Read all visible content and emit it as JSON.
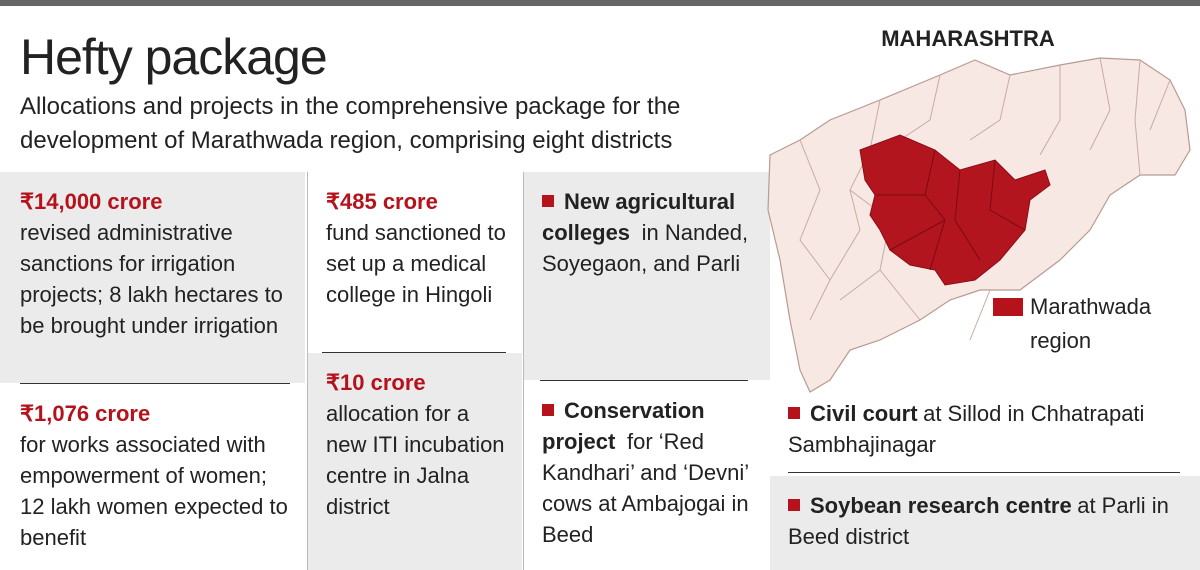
{
  "header": {
    "title": "Hefty package",
    "subtitle": "Allocations and projects in the comprehensive package for the development of Marathwada region, comprising eight districts"
  },
  "map": {
    "title": "MAHARASHTRA",
    "legend": "Marathwada region"
  },
  "items": [
    {
      "amount": "₹14,000 crore",
      "text": "revised administrative sanctions for irrigation projects; 8 lakh hectares to be brought under irrigation"
    },
    {
      "amount": "₹1,076 crore",
      "text": "for works associated with empowerment of women; 12 lakh women expected to benefit"
    },
    {
      "amount": "₹485 crore",
      "text": "fund sanctioned to set up a medical college in Hingoli"
    },
    {
      "amount": "₹10 crore",
      "text": "allocation for a new ITI incubation centre in Jalna district"
    },
    {
      "bold": "New agricultural colleges",
      "text": "in Nanded, Soyegaon, and Parli"
    },
    {
      "bold": "Conservation project",
      "text": "for ‘Red Kandhari’ and ‘Devni’ cows at Ambajogai in Beed"
    },
    {
      "bold": "Civil court",
      "text": "at Sillod in Chhatrapati Sambhajinagar"
    },
    {
      "bold": "Soybean research centre",
      "text": "at Parli in Beed district"
    }
  ]
}
